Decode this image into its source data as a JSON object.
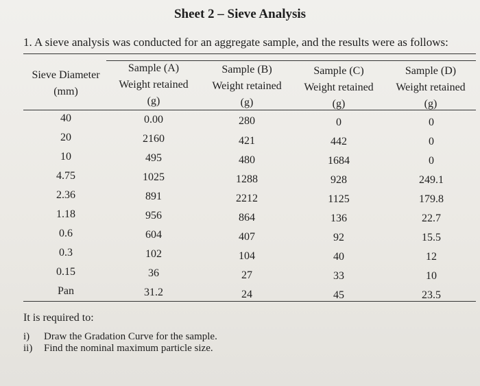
{
  "title": "Sheet 2 – Sieve Analysis",
  "question": "1.  A sieve analysis was conducted for an aggregate sample, and the results were as follows:",
  "table": {
    "headers": [
      {
        "lines": [
          "Sieve Diameter",
          "(mm)"
        ]
      },
      {
        "lines": [
          "Sample (A)",
          "Weight retained",
          "(g)"
        ]
      },
      {
        "lines": [
          "Sample (B)",
          "Weight retained",
          "(g)"
        ]
      },
      {
        "lines": [
          "Sample (C)",
          "Weight retained",
          "(g)"
        ]
      },
      {
        "lines": [
          "Sample (D)",
          "Weight retained",
          "(g)"
        ]
      }
    ],
    "rows": [
      [
        "40",
        "0.00",
        "280",
        "0",
        "0"
      ],
      [
        "20",
        "2160",
        "421",
        "442",
        "0"
      ],
      [
        "10",
        "495",
        "480",
        "1684",
        "0"
      ],
      [
        "4.75",
        "1025",
        "1288",
        "928",
        "249.1"
      ],
      [
        "2.36",
        "891",
        "2212",
        "1125",
        "179.8"
      ],
      [
        "1.18",
        "956",
        "864",
        "136",
        "22.7"
      ],
      [
        "0.6",
        "604",
        "407",
        "92",
        "15.5"
      ],
      [
        "0.3",
        "102",
        "104",
        "40",
        "12"
      ],
      [
        "0.15",
        "36",
        "27",
        "33",
        "10"
      ],
      [
        "Pan",
        "31.2",
        "24",
        "45",
        "23.5"
      ]
    ]
  },
  "requirement": "It is required to:",
  "tasks": [
    {
      "num": "i)",
      "text": "Draw the Gradation Curve for the sample."
    },
    {
      "num": "ii)",
      "text": "Find the nominal maximum particle size."
    }
  ]
}
